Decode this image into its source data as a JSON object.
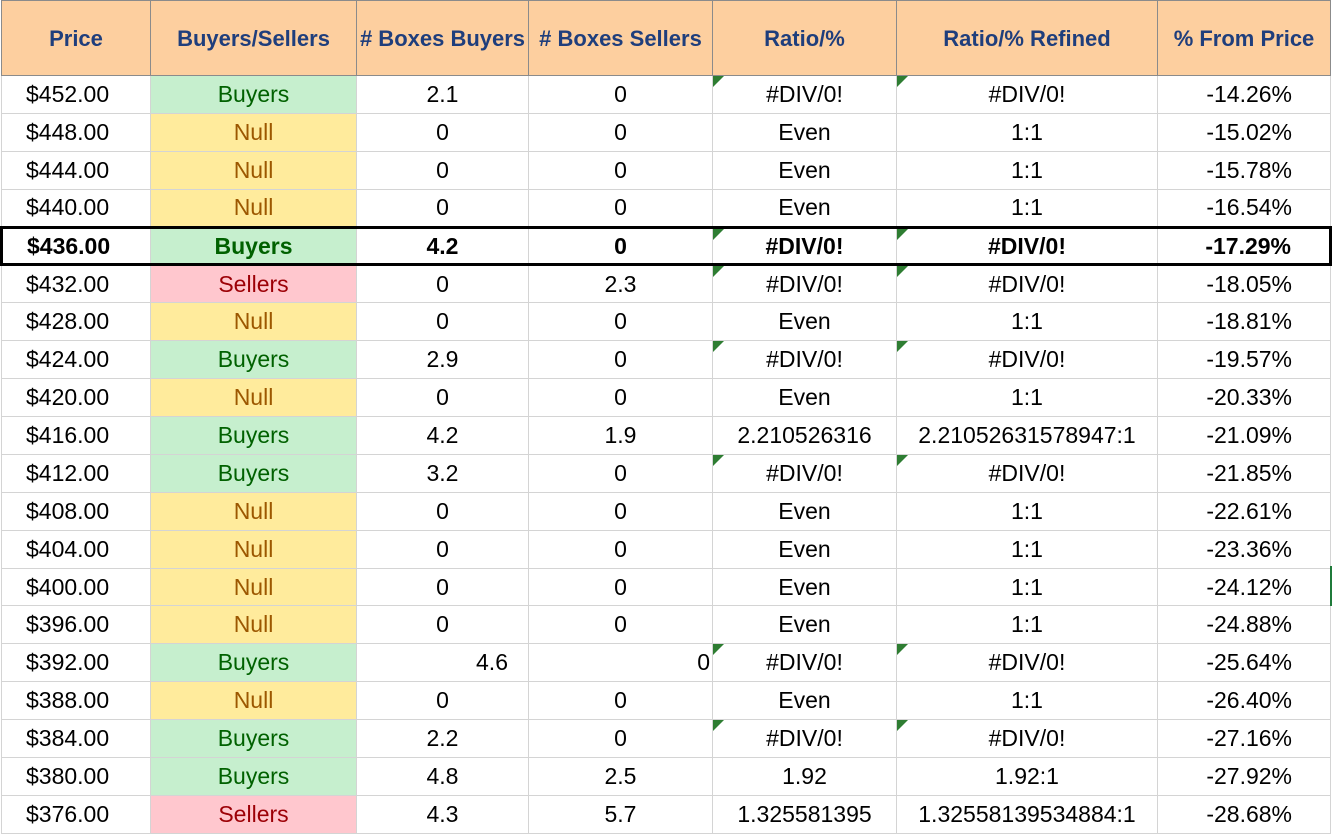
{
  "headers": [
    "Price",
    "Buyers/Sellers",
    "# Boxes Buyers",
    "# Boxes Sellers",
    "Ratio/%",
    "Ratio/% Refined",
    "% From Price"
  ],
  "colors": {
    "header_bg": "#fdcf9f",
    "header_text": "#1f3e7c",
    "buyers_bg": "#c6efce",
    "buyers_text": "#006100",
    "null_bg": "#ffeb9c",
    "null_text": "#9c5700",
    "sellers_bg": "#ffc7ce",
    "sellers_text": "#9c0006",
    "comment_flag": "#2e7d32"
  },
  "rows": [
    {
      "price": "$452.00",
      "type": "Buyers",
      "buyers": "2.1",
      "sellers": "0",
      "ratio": "#DIV/0!",
      "refined": "#DIV/0!",
      "from_price": "-14.26%",
      "flag": true
    },
    {
      "price": "$448.00",
      "type": "Null",
      "buyers": "0",
      "sellers": "0",
      "ratio": "Even",
      "refined": "1:1",
      "from_price": "-15.02%",
      "flag": false
    },
    {
      "price": "$444.00",
      "type": "Null",
      "buyers": "0",
      "sellers": "0",
      "ratio": "Even",
      "refined": "1:1",
      "from_price": "-15.78%",
      "flag": false
    },
    {
      "price": "$440.00",
      "type": "Null",
      "buyers": "0",
      "sellers": "0",
      "ratio": "Even",
      "refined": "1:1",
      "from_price": "-16.54%",
      "flag": false
    },
    {
      "price": "$436.00",
      "type": "Buyers",
      "buyers": "4.2",
      "sellers": "0",
      "ratio": "#DIV/0!",
      "refined": "#DIV/0!",
      "from_price": "-17.29%",
      "flag": true,
      "highlight": true
    },
    {
      "price": "$432.00",
      "type": "Sellers",
      "buyers": "0",
      "sellers": "2.3",
      "ratio": "#DIV/0!",
      "refined": "#DIV/0!",
      "from_price": "-18.05%",
      "flag": true
    },
    {
      "price": "$428.00",
      "type": "Null",
      "buyers": "0",
      "sellers": "0",
      "ratio": "Even",
      "refined": "1:1",
      "from_price": "-18.81%",
      "flag": false
    },
    {
      "price": "$424.00",
      "type": "Buyers",
      "buyers": "2.9",
      "sellers": "0",
      "ratio": "#DIV/0!",
      "refined": "#DIV/0!",
      "from_price": "-19.57%",
      "flag": true
    },
    {
      "price": "$420.00",
      "type": "Null",
      "buyers": "0",
      "sellers": "0",
      "ratio": "Even",
      "refined": "1:1",
      "from_price": "-20.33%",
      "flag": false
    },
    {
      "price": "$416.00",
      "type": "Buyers",
      "buyers": "4.2",
      "sellers": "1.9",
      "ratio": "2.210526316",
      "refined": "2.21052631578947:1",
      "from_price": "-21.09%",
      "flag": false
    },
    {
      "price": "$412.00",
      "type": "Buyers",
      "buyers": "3.2",
      "sellers": "0",
      "ratio": "#DIV/0!",
      "refined": "#DIV/0!",
      "from_price": "-21.85%",
      "flag": true
    },
    {
      "price": "$408.00",
      "type": "Null",
      "buyers": "0",
      "sellers": "0",
      "ratio": "Even",
      "refined": "1:1",
      "from_price": "-22.61%",
      "flag": false
    },
    {
      "price": "$404.00",
      "type": "Null",
      "buyers": "0",
      "sellers": "0",
      "ratio": "Even",
      "refined": "1:1",
      "from_price": "-23.36%",
      "flag": false
    },
    {
      "price": "$400.00",
      "type": "Null",
      "buyers": "0",
      "sellers": "0",
      "ratio": "Even",
      "refined": "1:1",
      "from_price": "-24.12%",
      "flag": false
    },
    {
      "price": "$396.00",
      "type": "Null",
      "buyers": "0",
      "sellers": "0",
      "ratio": "Even",
      "refined": "1:1",
      "from_price": "-24.88%",
      "flag": false
    },
    {
      "price": "$392.00",
      "type": "Buyers",
      "buyers": "4.6",
      "sellers": "0",
      "ratio": "#DIV/0!",
      "refined": "#DIV/0!",
      "from_price": "-25.64%",
      "flag": true,
      "right_aligned": true
    },
    {
      "price": "$388.00",
      "type": "Null",
      "buyers": "0",
      "sellers": "0",
      "ratio": "Even",
      "refined": "1:1",
      "from_price": "-26.40%",
      "flag": false
    },
    {
      "price": "$384.00",
      "type": "Buyers",
      "buyers": "2.2",
      "sellers": "0",
      "ratio": "#DIV/0!",
      "refined": "#DIV/0!",
      "from_price": "-27.16%",
      "flag": true
    },
    {
      "price": "$380.00",
      "type": "Buyers",
      "buyers": "4.8",
      "sellers": "2.5",
      "ratio": "1.92",
      "refined": "1.92:1",
      "from_price": "-27.92%",
      "flag": false
    },
    {
      "price": "$376.00",
      "type": "Sellers",
      "buyers": "4.3",
      "sellers": "5.7",
      "ratio": "1.325581395",
      "refined": "1.32558139534884:1",
      "from_price": "-28.68%",
      "flag": false
    }
  ]
}
